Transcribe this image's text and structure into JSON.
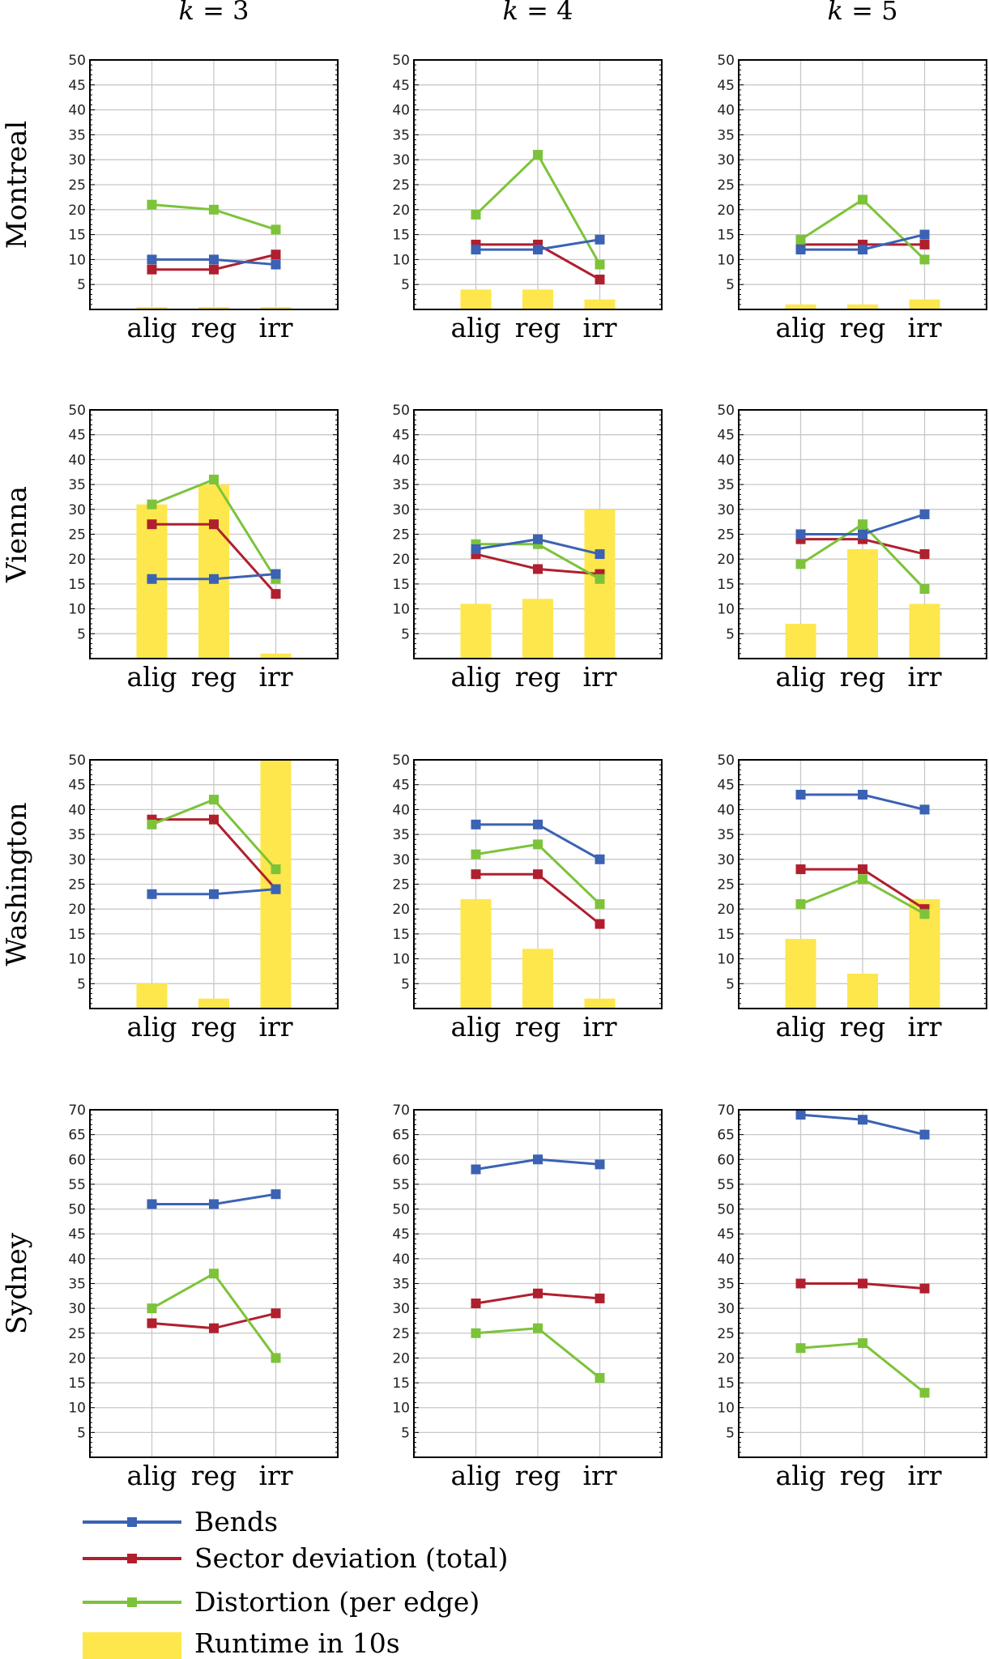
{
  "chart_data": {
    "type": "line",
    "column_titles": [
      "k = 3",
      "k = 4",
      "k = 5"
    ],
    "row_titles": [
      "Montreal",
      "Vienna",
      "Washington",
      "Sydney"
    ],
    "categories": [
      "alig",
      "reg",
      "irr"
    ],
    "series_names": [
      "Bends",
      "Sector deviation (total)",
      "Distortion (per edge)",
      "Runtime in 10s"
    ],
    "colors": {
      "Bends": "#3b62b3",
      "Sector deviation (total)": "#b01f2e",
      "Distortion (per edge)": "#7cc33a",
      "Runtime in 10s": "#fde74c"
    },
    "ylim_by_row": [
      [
        0,
        50
      ],
      [
        0,
        50
      ],
      [
        0,
        50
      ],
      [
        0,
        70
      ]
    ],
    "grid": true,
    "legend_placement": "bottom-left",
    "panels": [
      {
        "row": "Montreal",
        "col": "k = 3",
        "Bends": [
          10,
          10,
          9
        ],
        "Sector": [
          8,
          8,
          11
        ],
        "Distortion": [
          21,
          20,
          16
        ],
        "Runtime": [
          0.2,
          0.2,
          0.2
        ]
      },
      {
        "row": "Montreal",
        "col": "k = 4",
        "Bends": [
          12,
          12,
          14
        ],
        "Sector": [
          13,
          13,
          6
        ],
        "Distortion": [
          19,
          31,
          9
        ],
        "Runtime": [
          4,
          4,
          2
        ]
      },
      {
        "row": "Montreal",
        "col": "k = 5",
        "Bends": [
          12,
          12,
          15
        ],
        "Sector": [
          13,
          13,
          13
        ],
        "Distortion": [
          14,
          22,
          10
        ],
        "Runtime": [
          1,
          1,
          2
        ]
      },
      {
        "row": "Vienna",
        "col": "k = 3",
        "Bends": [
          16,
          16,
          17
        ],
        "Sector": [
          27,
          27,
          13
        ],
        "Distortion": [
          31,
          36,
          16
        ],
        "Runtime": [
          31,
          35,
          1
        ]
      },
      {
        "row": "Vienna",
        "col": "k = 4",
        "Bends": [
          22,
          24,
          21
        ],
        "Sector": [
          21,
          18,
          17
        ],
        "Distortion": [
          23,
          23,
          16
        ],
        "Runtime": [
          11,
          12,
          30
        ]
      },
      {
        "row": "Vienna",
        "col": "k = 5",
        "Bends": [
          25,
          25,
          29
        ],
        "Sector": [
          24,
          24,
          21
        ],
        "Distortion": [
          19,
          27,
          14
        ],
        "Runtime": [
          7,
          22,
          11
        ]
      },
      {
        "row": "Washington",
        "col": "k = 3",
        "Bends": [
          23,
          23,
          24
        ],
        "Sector": [
          38,
          38,
          24
        ],
        "Distortion": [
          37,
          42,
          28
        ],
        "Runtime": [
          5,
          2,
          52
        ]
      },
      {
        "row": "Washington",
        "col": "k = 4",
        "Bends": [
          37,
          37,
          30
        ],
        "Sector": [
          27,
          27,
          17
        ],
        "Distortion": [
          31,
          33,
          21
        ],
        "Runtime": [
          22,
          12,
          2
        ]
      },
      {
        "row": "Washington",
        "col": "k = 5",
        "Bends": [
          43,
          43,
          40
        ],
        "Sector": [
          28,
          28,
          20
        ],
        "Distortion": [
          21,
          26,
          19
        ],
        "Runtime": [
          14,
          7,
          22
        ]
      },
      {
        "row": "Sydney",
        "col": "k = 3",
        "Bends": [
          51,
          51,
          53
        ],
        "Sector": [
          27,
          26,
          29
        ],
        "Distortion": [
          30,
          37,
          20
        ],
        "Runtime": null
      },
      {
        "row": "Sydney",
        "col": "k = 4",
        "Bends": [
          58,
          60,
          59
        ],
        "Sector": [
          31,
          33,
          32
        ],
        "Distortion": [
          25,
          26,
          16
        ],
        "Runtime": null
      },
      {
        "row": "Sydney",
        "col": "k = 5",
        "Bends": [
          69,
          68,
          65
        ],
        "Sector": [
          35,
          35,
          34
        ],
        "Distortion": [
          22,
          23,
          13
        ],
        "Runtime": null
      }
    ]
  }
}
